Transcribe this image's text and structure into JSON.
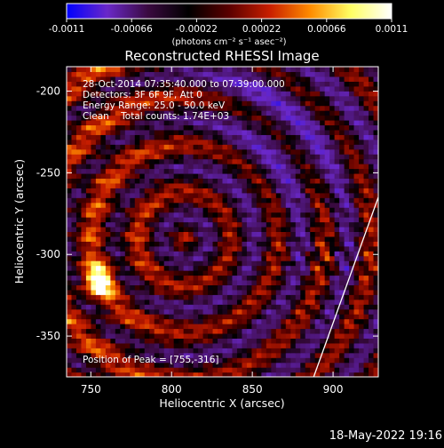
{
  "chart_data": {
    "type": "heatmap",
    "title": "Reconstructed RHESSI Image",
    "xlabel": "Heliocentric X (arcsec)",
    "ylabel": "Heliocentric Y (arcsec)",
    "xlim": [
      735,
      928
    ],
    "ylim": [
      -375,
      -185
    ],
    "xticks": [
      {
        "label": "750",
        "value": 750
      },
      {
        "label": "800",
        "value": 800
      },
      {
        "label": "850",
        "value": 850
      },
      {
        "label": "900",
        "value": 900
      }
    ],
    "yticks": [
      {
        "label": "-200",
        "value": -200
      },
      {
        "label": "-250",
        "value": -250
      },
      {
        "label": "-300",
        "value": -300
      },
      {
        "label": "-350",
        "value": -350
      }
    ],
    "colorbar": {
      "min": -0.0011,
      "max": 0.0011,
      "ticks": [
        {
          "label": "-0.0011",
          "value": -0.0011
        },
        {
          "label": "-0.00066",
          "value": -0.00066
        },
        {
          "label": "-0.00022",
          "value": -0.00022
        },
        {
          "label": "0.00022",
          "value": 0.00022
        },
        {
          "label": "0.00066",
          "value": 0.00066
        },
        {
          "label": "0.0011",
          "value": 0.0011
        }
      ],
      "unit_label": "(photons cm⁻² s⁻¹ asec⁻²)",
      "colors": [
        "#0000ff",
        "#6a28c8",
        "#3a0a40",
        "#000000",
        "#5a0000",
        "#c81e00",
        "#ff8c00",
        "#ffff64",
        "#ffffff"
      ]
    },
    "annotations": [
      "28-Oct-2014 07:35:40.000 to 07:39:00.000",
      "Detectors: 3F 6F 9F, Att 0",
      "Energy Range: 25.0 - 50.0 keV",
      "Clean    Total counts: 1.74E+03"
    ],
    "peak_label": "Position of Peak = [755,-316]",
    "peak": {
      "x": 755,
      "y": -316
    },
    "limb_line": [
      [
        888,
        -375
      ],
      [
        928,
        -265
      ]
    ],
    "grid": false
  },
  "date_stamp": "18-May-2022 19:16"
}
